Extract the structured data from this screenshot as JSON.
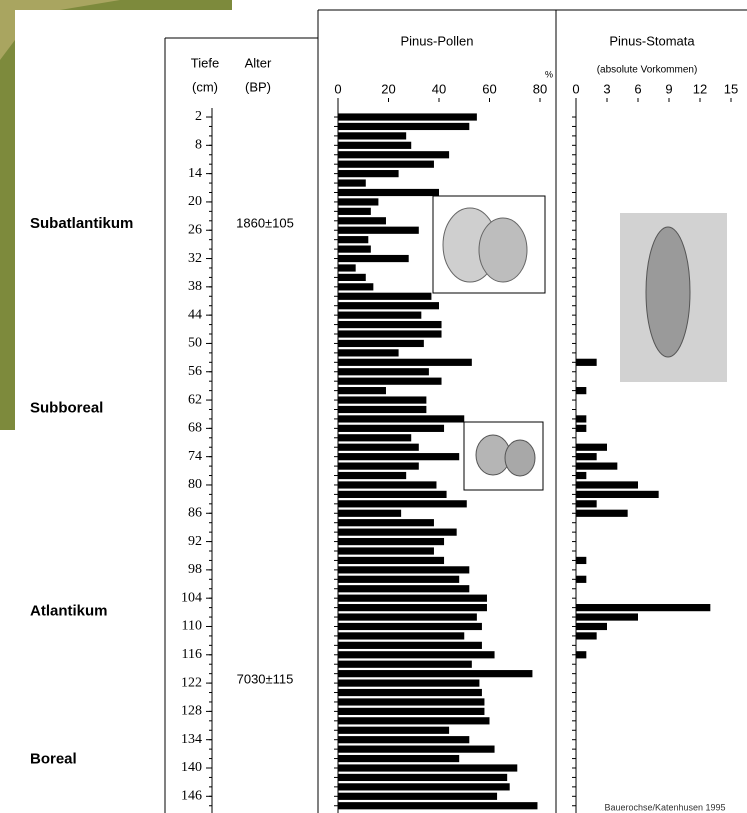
{
  "chart_data": {
    "type": "bar",
    "orientation": "horizontal",
    "depth_header": [
      "Tiefe",
      "(cm)"
    ],
    "age_header": [
      "Alter",
      "(BP)"
    ],
    "depths": [
      2,
      4,
      6,
      8,
      10,
      12,
      14,
      16,
      18,
      20,
      22,
      24,
      26,
      28,
      30,
      32,
      34,
      36,
      38,
      40,
      42,
      44,
      46,
      48,
      50,
      52,
      54,
      56,
      58,
      60,
      62,
      64,
      66,
      68,
      70,
      72,
      74,
      76,
      78,
      80,
      82,
      84,
      86,
      88,
      90,
      92,
      94,
      96,
      98,
      100,
      102,
      104,
      106,
      108,
      110,
      112,
      114,
      116,
      118,
      120,
      122,
      124,
      126,
      128,
      130,
      132,
      134,
      136,
      138,
      140,
      142,
      144,
      146,
      148
    ],
    "ylim": [
      1,
      149
    ],
    "yticks": [
      2,
      8,
      14,
      20,
      26,
      32,
      38,
      44,
      50,
      56,
      62,
      68,
      74,
      80,
      86,
      92,
      98,
      104,
      110,
      116,
      122,
      128,
      134,
      140,
      146
    ],
    "zones": [
      {
        "label": "Subatlantikum",
        "depth": 24.7
      },
      {
        "label": "Subboreal",
        "depth": 63.8
      },
      {
        "label": "Atlantikum",
        "depth": 106.8
      },
      {
        "label": "Boreal",
        "depth": 138.2
      }
    ],
    "ages": [
      {
        "label": "1860±105",
        "depth": 24.7
      },
      {
        "label": "7030±115",
        "depth": 121.4
      }
    ],
    "series": [
      {
        "name": "Pinus-Pollen",
        "unit": "%",
        "color": "#000000",
        "xlim": [
          0,
          80
        ],
        "xticks": [
          0,
          20,
          40,
          60,
          80
        ],
        "values": [
          55,
          52,
          27,
          29,
          44,
          38,
          24,
          11,
          40,
          16,
          13,
          19,
          32,
          12,
          13,
          28,
          7,
          11,
          14,
          37,
          40,
          33,
          41,
          41,
          34,
          24,
          53,
          36,
          41,
          19,
          35,
          35,
          50,
          42,
          29,
          32,
          48,
          32,
          27,
          39,
          43,
          51,
          25,
          38,
          47,
          42,
          38,
          42,
          52,
          48,
          52,
          59,
          59,
          55,
          57,
          50,
          57,
          62,
          53,
          77,
          56,
          57,
          58,
          58,
          60,
          44,
          52,
          62,
          48,
          71,
          67,
          68,
          63,
          79
        ]
      },
      {
        "name": "Pinus-Stomata",
        "subtitle": "(absolute Vorkommen)",
        "color": "#000000",
        "xlim": [
          0,
          15
        ],
        "xticks": [
          0,
          3,
          6,
          9,
          12,
          15
        ],
        "values": [
          0,
          0,
          0,
          0,
          0,
          0,
          0,
          0,
          0,
          0,
          0,
          0,
          0,
          0,
          0,
          0,
          0,
          0,
          0,
          0,
          0,
          0,
          0,
          0,
          0,
          0,
          2,
          0,
          0,
          1,
          0,
          0,
          1,
          1,
          0,
          3,
          2,
          4,
          1,
          6,
          8,
          2,
          5,
          0,
          0,
          0,
          0,
          1,
          0,
          1,
          0,
          0,
          13,
          6,
          3,
          2,
          0,
          1,
          0,
          0,
          0,
          0,
          0,
          0,
          0,
          0,
          0,
          0,
          0,
          0,
          0,
          0,
          0,
          0
        ]
      }
    ],
    "source": "Bauerochse/Katenhusen 1995"
  }
}
